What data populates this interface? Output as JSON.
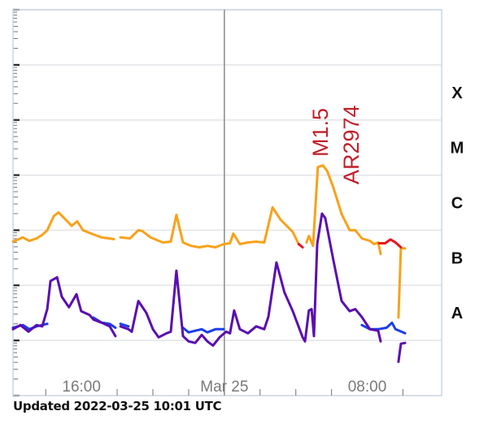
{
  "chart_data": {
    "type": "line",
    "title": "",
    "xlabel": "",
    "ylabel": "",
    "y_scale": "log",
    "xlim": [
      "2022-03-24T12:10",
      "2022-03-25T12:10"
    ],
    "ylim": [
      1e-09,
      0.01
    ],
    "grid": true,
    "legend": "none",
    "x_tick_labels": [
      {
        "t": "2022-03-24T16:00",
        "label": "16:00"
      },
      {
        "t": "2022-03-25T00:00",
        "label": "Mar 25"
      },
      {
        "t": "2022-03-25T08:00",
        "label": "08:00"
      }
    ],
    "x_minor_ticks": [
      "2022-03-24T14:00",
      "2022-03-24T18:00",
      "2022-03-24T20:00",
      "2022-03-24T22:00",
      "2022-03-25T02:00",
      "2022-03-25T04:00",
      "2022-03-25T06:00",
      "2022-03-25T10:00"
    ],
    "day_marker": "2022-03-25T00:00",
    "class_labels": [
      {
        "label": "X",
        "low": 0.0001,
        "high": 0.001
      },
      {
        "label": "M",
        "low": 1e-05,
        "high": 0.0001
      },
      {
        "label": "C",
        "low": 1e-06,
        "high": 1e-05
      },
      {
        "label": "B",
        "low": 1e-07,
        "high": 1e-06
      },
      {
        "label": "A",
        "low": 1e-08,
        "high": 1e-07
      }
    ],
    "annotations": [
      {
        "text": "M1.5",
        "t": "2022-03-25T05:20",
        "flux": 1.5e-05,
        "color": "#c0202a"
      },
      {
        "text": "AR2974",
        "t": "2022-03-25T07:00",
        "flux": 1.5e-05,
        "color": "#c0202a"
      }
    ],
    "series": [
      {
        "color": "#1a3ee8",
        "segments": [
          [
            [
              "2022-03-24T12:10",
              1.7e-08
            ],
            [
              "2022-03-24T12:43",
              1.9e-08
            ],
            [
              "2022-03-24T13:05",
              1.6e-08
            ],
            [
              "2022-03-24T13:29",
              1.8e-08
            ],
            [
              "2022-03-24T13:48",
              1.9e-08
            ],
            [
              "2022-03-24T14:05",
              2e-08
            ]
          ],
          [
            [
              "2022-03-24T16:40",
              2.6e-08
            ],
            [
              "2022-03-24T17:08",
              2.1e-08
            ],
            [
              "2022-03-24T17:35",
              2e-08
            ],
            [
              "2022-03-24T17:54",
              1.7e-08
            ]
          ],
          [
            [
              "2022-03-24T18:11",
              2e-08
            ],
            [
              "2022-03-24T18:38",
              1.8e-08
            ]
          ],
          [
            [
              "2022-03-24T21:41",
              1.7e-08
            ],
            [
              "2022-03-24T22:00",
              1.4e-08
            ],
            [
              "2022-03-24T22:22",
              1.5e-08
            ],
            [
              "2022-03-24T22:44",
              1.6e-08
            ],
            [
              "2022-03-24T23:03",
              1.4e-08
            ],
            [
              "2022-03-24T23:30",
              1.6e-08
            ],
            [
              "2022-03-24T23:58",
              1.6e-08
            ]
          ],
          [
            [
              "2022-03-25T07:42",
              1.9e-08
            ],
            [
              "2022-03-25T08:09",
              1.6e-08
            ],
            [
              "2022-03-25T08:37",
              1.6e-08
            ],
            [
              "2022-03-25T09:05",
              1.7e-08
            ],
            [
              "2022-03-25T09:23",
              2.1e-08
            ],
            [
              "2022-03-25T09:35",
              1.6e-08
            ],
            [
              "2022-03-25T10:07",
              1.35e-08
            ]
          ]
        ]
      },
      {
        "color": "#5a0fb0",
        "segments": [
          [
            [
              "2022-03-24T12:10",
              1.6e-08
            ],
            [
              "2022-03-24T12:35",
              1.9e-08
            ],
            [
              "2022-03-24T13:02",
              1.44e-08
            ],
            [
              "2022-03-24T13:29",
              1.9e-08
            ],
            [
              "2022-03-24T13:48",
              1.8e-08
            ],
            [
              "2022-03-24T14:05",
              3.7e-08
            ],
            [
              "2022-03-24T14:16",
              1.2e-07
            ],
            [
              "2022-03-24T14:38",
              1.4e-07
            ],
            [
              "2022-03-24T14:54",
              6.2e-08
            ],
            [
              "2022-03-24T15:18",
              4e-08
            ],
            [
              "2022-03-24T15:43",
              6.9e-08
            ],
            [
              "2022-03-24T15:59",
              3.4e-08
            ],
            [
              "2022-03-24T16:27",
              2.9e-08
            ],
            [
              "2022-03-24T16:40",
              2.4e-08
            ],
            [
              "2022-03-24T17:08",
              2.1e-08
            ],
            [
              "2022-03-24T17:35",
              1.8e-08
            ],
            [
              "2022-03-24T17:54",
              1.2e-08
            ]
          ],
          [
            [
              "2022-03-24T18:11",
              1.8e-08
            ],
            [
              "2022-03-24T18:38",
              1.6e-08
            ],
            [
              "2022-03-24T18:49",
              1.44e-08
            ],
            [
              "2022-03-24T19:11",
              5.2e-08
            ],
            [
              "2022-03-24T19:38",
              3.15e-08
            ],
            [
              "2022-03-24T20:00",
              1.6e-08
            ],
            [
              "2022-03-24T20:19",
              1.14e-08
            ],
            [
              "2022-03-24T20:46",
              1.35e-08
            ],
            [
              "2022-03-24T21:00",
              1.44e-08
            ],
            [
              "2022-03-24T21:19",
              1.84e-07
            ],
            [
              "2022-03-24T21:41",
              1.2e-08
            ],
            [
              "2022-03-24T22:00",
              9.6e-09
            ],
            [
              "2022-03-24T22:22",
              9e-09
            ],
            [
              "2022-03-24T22:44",
              1.26e-08
            ],
            [
              "2022-03-24T23:03",
              9.6e-09
            ],
            [
              "2022-03-24T23:22",
              8.1e-09
            ],
            [
              "2022-03-24T23:44",
              1.14e-08
            ],
            [
              "2022-03-25T00:06",
              1.44e-08
            ],
            [
              "2022-03-25T00:19",
              1.35e-08
            ],
            [
              "2022-03-25T00:33",
              3.5e-08
            ],
            [
              "2022-03-25T00:52",
              1.6e-08
            ],
            [
              "2022-03-25T01:19",
              1.35e-08
            ],
            [
              "2022-03-25T01:47",
              1.8e-08
            ],
            [
              "2022-03-25T02:14",
              1.6e-08
            ],
            [
              "2022-03-25T02:28",
              2.7e-08
            ],
            [
              "2022-03-25T02:55",
              2.6e-07
            ],
            [
              "2022-03-25T03:22",
              7.4e-08
            ],
            [
              "2022-03-25T03:50",
              3.4e-08
            ],
            [
              "2022-03-25T04:23",
              1.14e-08
            ],
            [
              "2022-03-25T04:31",
              9.6e-09
            ],
            [
              "2022-03-25T04:44",
              3.5e-08
            ],
            [
              "2022-03-25T04:53",
              3.7e-08
            ],
            [
              "2022-03-25T05:01",
              1.2e-08
            ],
            [
              "2022-03-25T05:12",
              5.6e-07
            ],
            [
              "2022-03-25T05:28",
              2e-06
            ],
            [
              "2022-03-25T05:39",
              1.66e-06
            ],
            [
              "2022-03-25T06:06",
              2.9e-07
            ],
            [
              "2022-03-25T06:34",
              5.2e-08
            ],
            [
              "2022-03-25T07:01",
              3.4e-08
            ],
            [
              "2022-03-25T07:20",
              3.7e-08
            ],
            [
              "2022-03-25T07:42",
              2.66e-08
            ],
            [
              "2022-03-25T08:09",
              1.6e-08
            ],
            [
              "2022-03-25T08:37",
              1.5e-08
            ],
            [
              "2022-03-25T08:45",
              9.6e-09
            ]
          ],
          [
            [
              "2022-03-25T09:45",
              4.1e-09
            ],
            [
              "2022-03-25T09:53",
              8.7e-09
            ],
            [
              "2022-03-25T10:07",
              9e-09
            ]
          ]
        ]
      },
      {
        "color": "#f7a21b",
        "segments": [
          [
            [
              "2022-03-24T12:10",
              6.2e-07
            ],
            [
              "2022-03-24T12:43",
              7.4e-07
            ],
            [
              "2022-03-24T13:05",
              6.4e-07
            ],
            [
              "2022-03-24T13:29",
              7.1e-07
            ],
            [
              "2022-03-24T13:48",
              8.2e-07
            ],
            [
              "2022-03-24T14:05",
              1e-06
            ],
            [
              "2022-03-24T14:27",
              1.8e-06
            ],
            [
              "2022-03-24T14:43",
              2.1e-06
            ],
            [
              "2022-03-24T15:00",
              1.7e-06
            ],
            [
              "2022-03-24T15:27",
              1.2e-06
            ],
            [
              "2022-03-24T15:46",
              1.45e-06
            ],
            [
              "2022-03-24T16:05",
              1e-06
            ],
            [
              "2022-03-24T16:32",
              8.7e-07
            ],
            [
              "2022-03-24T17:08",
              7.4e-07
            ],
            [
              "2022-03-24T17:49",
              6.9e-07
            ]
          ],
          [
            [
              "2022-03-24T18:11",
              7.4e-07
            ],
            [
              "2022-03-24T18:43",
              7.1e-07
            ],
            [
              "2022-03-24T19:11",
              1e-06
            ],
            [
              "2022-03-24T19:24",
              9.7e-07
            ],
            [
              "2022-03-24T19:52",
              7.4e-07
            ],
            [
              "2022-03-24T20:33",
              6e-07
            ],
            [
              "2022-03-24T21:00",
              6.2e-07
            ],
            [
              "2022-03-24T21:19",
              1.9e-06
            ],
            [
              "2022-03-24T21:41",
              6e-07
            ],
            [
              "2022-03-24T22:08",
              5.2e-07
            ],
            [
              "2022-03-24T22:36",
              4.9e-07
            ],
            [
              "2022-03-24T23:03",
              5.2e-07
            ],
            [
              "2022-03-24T23:30",
              4.9e-07
            ],
            [
              "2022-03-24T23:58",
              5.6e-07
            ],
            [
              "2022-03-25T00:19",
              5.8e-07
            ],
            [
              "2022-03-25T00:30",
              8.7e-07
            ],
            [
              "2022-03-25T00:52",
              5.6e-07
            ],
            [
              "2022-03-25T01:19",
              6e-07
            ],
            [
              "2022-03-25T01:47",
              6.2e-07
            ],
            [
              "2022-03-25T02:14",
              6e-07
            ],
            [
              "2022-03-25T02:42",
              2.6e-06
            ],
            [
              "2022-03-25T03:09",
              1.55e-06
            ],
            [
              "2022-03-25T03:50",
              9.3e-07
            ],
            [
              "2022-03-25T04:10",
              5.6e-07
            ]
          ],
          [
            [
              "2022-03-25T04:36",
              6e-07
            ],
            [
              "2022-03-25T04:44",
              7.9e-07
            ],
            [
              "2022-03-25T04:58",
              5.2e-07
            ],
            [
              "2022-03-25T05:14",
              1.4e-05
            ],
            [
              "2022-03-25T05:31",
              1.5e-05
            ],
            [
              "2022-03-25T05:45",
              1.2e-05
            ],
            [
              "2022-03-25T06:06",
              6e-06
            ],
            [
              "2022-03-25T06:34",
              1.97e-06
            ],
            [
              "2022-03-25T07:01",
              1e-06
            ],
            [
              "2022-03-25T07:20",
              1e-06
            ],
            [
              "2022-03-25T07:42",
              7.1e-07
            ],
            [
              "2022-03-25T08:09",
              6.4e-07
            ],
            [
              "2022-03-25T08:23",
              5.6e-07
            ],
            [
              "2022-03-25T08:37",
              6e-07
            ],
            [
              "2022-03-25T08:45",
              3.7e-07
            ]
          ],
          [
            [
              "2022-03-25T09:45",
              2.6e-08
            ],
            [
              "2022-03-25T09:53",
              4.7e-07
            ],
            [
              "2022-03-25T10:07",
              4.7e-07
            ]
          ]
        ]
      },
      {
        "color": "#e8141e",
        "segments": [
          [
            [
              "2022-03-25T04:10",
              5.6e-07
            ],
            [
              "2022-03-25T04:23",
              4.9e-07
            ]
          ],
          [
            [
              "2022-03-25T08:40",
              5.8e-07
            ],
            [
              "2022-03-25T09:00",
              5.8e-07
            ],
            [
              "2022-03-25T09:18",
              6.8e-07
            ],
            [
              "2022-03-25T09:35",
              6e-07
            ],
            [
              "2022-03-25T09:53",
              4.9e-07
            ]
          ]
        ]
      }
    ]
  },
  "footer": {
    "updated": "Updated 2022-03-25 10:01 UTC"
  }
}
